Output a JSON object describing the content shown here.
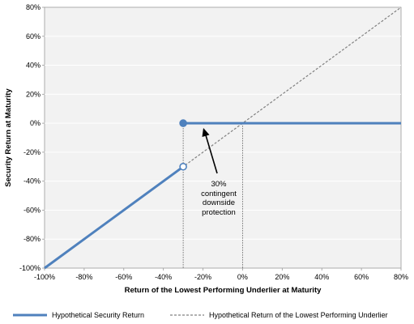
{
  "chart_data": {
    "type": "line",
    "xlabel": "Return of the Lowest Performing Underlier at Maturity",
    "ylabel": "Security Return at Maturity",
    "xlim": [
      -100,
      80
    ],
    "ylim": [
      -100,
      80
    ],
    "x_ticks": [
      -100,
      -80,
      -60,
      -40,
      -20,
      0,
      20,
      40,
      60,
      80
    ],
    "y_ticks": [
      -100,
      -80,
      -60,
      -40,
      -20,
      0,
      20,
      40,
      60,
      80
    ],
    "x_tick_labels": [
      "-100%",
      "-80%",
      "-60%",
      "-40%",
      "-20%",
      "0%",
      "20%",
      "40%",
      "60%",
      "80%"
    ],
    "y_tick_labels": [
      "-100%",
      "-80%",
      "-60%",
      "-40%",
      "-20%",
      "0%",
      "20%",
      "40%",
      "60%",
      "80%"
    ],
    "grid": true,
    "plot_background": "#f2f2f2",
    "series": [
      {
        "name": "Hypothetical Security Return",
        "color": "#4f81bd",
        "style": "solid",
        "segments": [
          [
            [
              -100,
              -100
            ],
            [
              -30,
              -30
            ]
          ],
          [
            [
              -30,
              0
            ],
            [
              80,
              0
            ]
          ]
        ],
        "markers": [
          {
            "x": -30,
            "y": 0,
            "fill": "filled"
          },
          {
            "x": -30,
            "y": -30,
            "fill": "open"
          }
        ]
      },
      {
        "name": "Hypothetical Return of the Lowest Performing Underlier",
        "color": "#808080",
        "style": "dashed",
        "segments": [
          [
            [
              -100,
              -100
            ],
            [
              80,
              80
            ]
          ]
        ]
      }
    ],
    "reference_lines_x": [
      -30,
      0
    ],
    "annotation": {
      "lines": [
        "30%",
        "contingent",
        "downside",
        "protection"
      ],
      "arrow_to": {
        "x": -30,
        "y": 0
      }
    },
    "legend": {
      "position": "bottom"
    }
  }
}
